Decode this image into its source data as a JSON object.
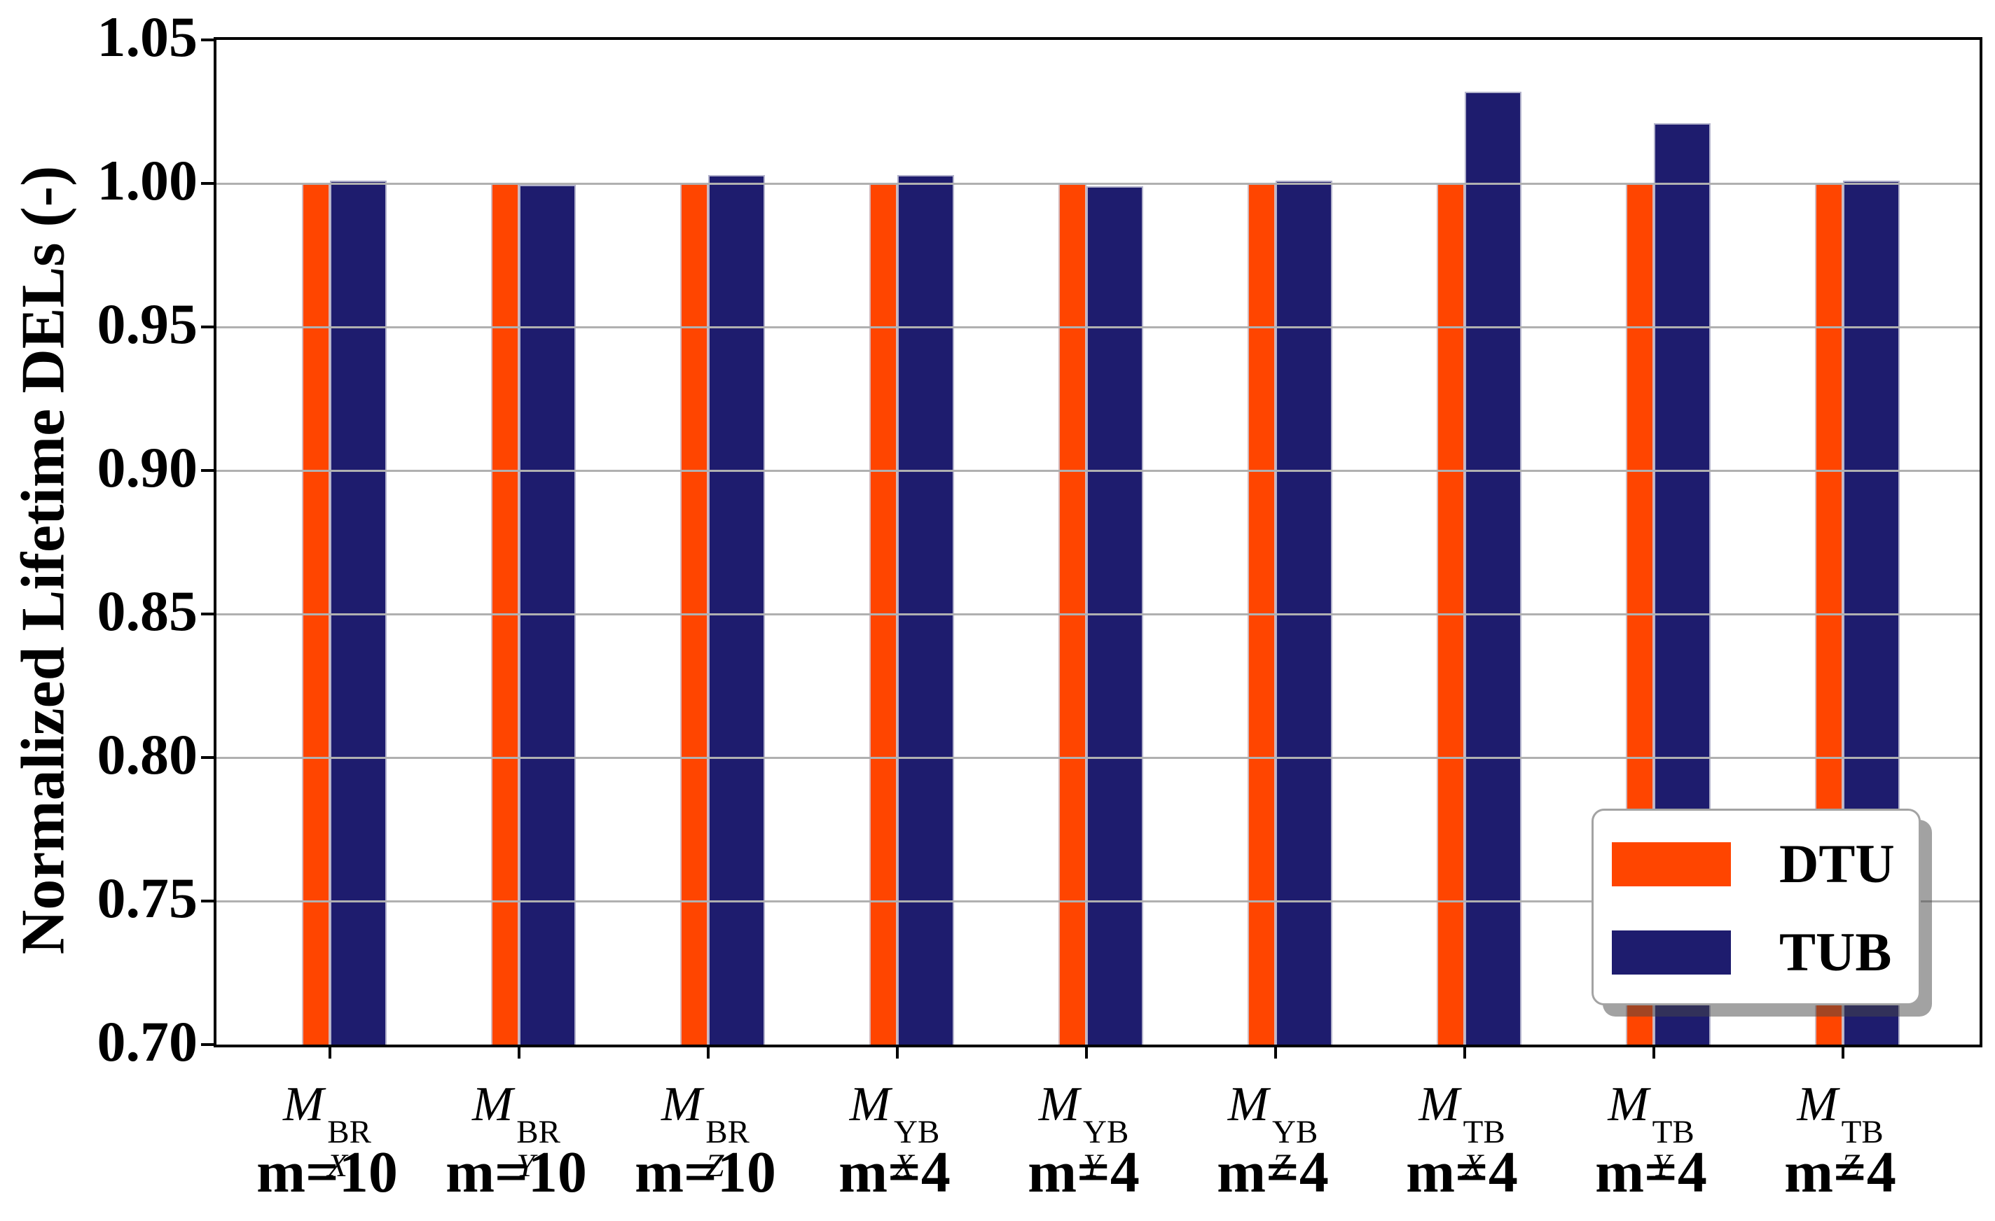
{
  "chart_data": {
    "type": "bar",
    "title": "",
    "ylabel": "Normalized Lifetime DELs (-)",
    "xlabel": "",
    "ylim": [
      0.7,
      1.05
    ],
    "ytick_labels": [
      "1.05",
      "1.00",
      "0.95",
      "0.90",
      "0.85",
      "0.80",
      "0.75",
      "0.70"
    ],
    "grid": true,
    "grid_color": "#b0b0b0",
    "legend_position": "lower right",
    "categories": [
      {
        "base": "M",
        "sub": "X",
        "sup": "BR",
        "line2": "m=10"
      },
      {
        "base": "M",
        "sub": "Y",
        "sup": "BR",
        "line2": "m=10"
      },
      {
        "base": "M",
        "sub": "Z",
        "sup": "BR",
        "line2": "m=10"
      },
      {
        "base": "M",
        "sub": "X",
        "sup": "YB",
        "line2": "m=4"
      },
      {
        "base": "M",
        "sub": "Y",
        "sup": "YB",
        "line2": "m=4"
      },
      {
        "base": "M",
        "sub": "Z",
        "sup": "YB",
        "line2": "m=4"
      },
      {
        "base": "M",
        "sub": "X",
        "sup": "TB",
        "line2": "m=4"
      },
      {
        "base": "M",
        "sub": "Y",
        "sup": "TB",
        "line2": "m=4"
      },
      {
        "base": "M",
        "sub": "Z",
        "sup": "TB",
        "line2": "m=4"
      }
    ],
    "series": [
      {
        "name": "DTU",
        "color": "#ff4500",
        "values": [
          1.0,
          1.0,
          1.0,
          1.0,
          1.0,
          1.0,
          1.0,
          1.0,
          1.0
        ]
      },
      {
        "name": "TUB",
        "color": "#1e1c6e",
        "values": [
          1.001,
          0.9995,
          1.003,
          1.003,
          0.999,
          1.001,
          1.032,
          1.021,
          1.001
        ]
      }
    ]
  }
}
